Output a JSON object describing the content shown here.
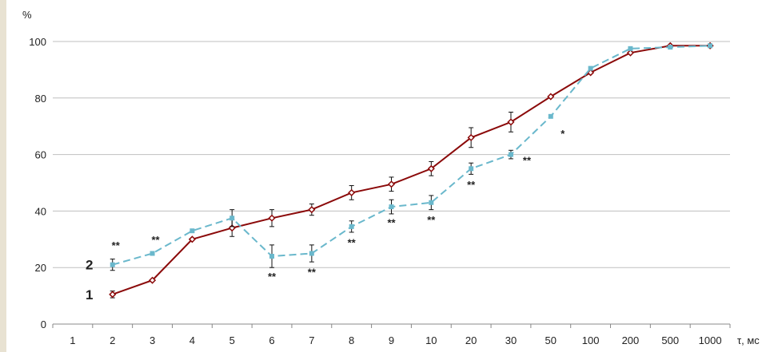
{
  "chart_data": {
    "type": "line",
    "title": "",
    "ylabel": "%",
    "xlabel": "τ, мс",
    "categories": [
      "1",
      "2",
      "3",
      "4",
      "5",
      "6",
      "7",
      "8",
      "9",
      "10",
      "20",
      "30",
      "50",
      "100",
      "200",
      "500",
      "1000"
    ],
    "ylim": [
      0,
      100
    ],
    "yticks": [
      0,
      20,
      40,
      60,
      80,
      100
    ],
    "grid": "horizontal",
    "legend": "none",
    "series": [
      {
        "name": "1",
        "color": "#8b0a0a",
        "line_style": "solid",
        "marker": "open-diamond",
        "label_position_category": "2",
        "values": [
          null,
          10.5,
          15.5,
          30,
          34,
          37.5,
          40.5,
          46.5,
          49.5,
          55,
          66,
          71.5,
          80.5,
          89,
          96,
          98.5,
          98.5
        ],
        "errors": [
          null,
          1.2,
          null,
          null,
          3,
          3,
          2,
          2.5,
          2.5,
          2.5,
          3.5,
          3.5,
          null,
          null,
          null,
          null,
          null
        ]
      },
      {
        "name": "2",
        "color": "#6ab8cc",
        "line_style": "dashed",
        "marker": "square",
        "label_position_category": "2",
        "values": [
          null,
          21,
          25,
          33,
          37.5,
          24,
          25,
          34.5,
          41.5,
          43,
          55,
          60,
          73.5,
          90.5,
          97.5,
          98,
          98.5
        ],
        "errors": [
          null,
          2,
          null,
          null,
          3,
          4,
          3,
          2,
          2.5,
          2.5,
          2,
          1.5,
          null,
          null,
          null,
          null,
          null
        ]
      }
    ],
    "annotations": [
      {
        "category": "2",
        "y": 28,
        "text": "**"
      },
      {
        "category": "3",
        "y": 30,
        "text": "**"
      },
      {
        "category": "6",
        "y": 17,
        "text": "**"
      },
      {
        "category": "7",
        "y": 18.5,
        "text": "**"
      },
      {
        "category": "8",
        "y": 29,
        "text": "**"
      },
      {
        "category": "9",
        "y": 36,
        "text": "**"
      },
      {
        "category": "10",
        "y": 37,
        "text": "**"
      },
      {
        "category": "20",
        "y": 49.5,
        "text": "**"
      },
      {
        "category": "30",
        "y": 58,
        "text": "**"
      },
      {
        "category": "50",
        "y": 67.5,
        "text": "*"
      }
    ]
  }
}
